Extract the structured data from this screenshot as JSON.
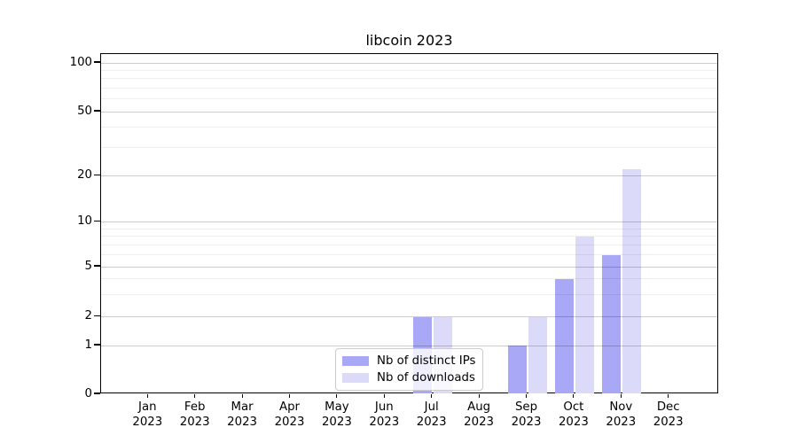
{
  "chart_data": {
    "type": "bar",
    "title": "libcoin 2023",
    "x_year": "2023",
    "categories": [
      "Jan",
      "Feb",
      "Mar",
      "Apr",
      "May",
      "Jun",
      "Jul",
      "Aug",
      "Sep",
      "Oct",
      "Nov",
      "Dec"
    ],
    "series": [
      {
        "name": "Nb of distinct IPs",
        "color": "#a8a8f6",
        "values": [
          0,
          0,
          0,
          0,
          0,
          0,
          2,
          0,
          1,
          4,
          6,
          0
        ]
      },
      {
        "name": "Nb of downloads",
        "color": "#dbdbf9",
        "values": [
          0,
          0,
          0,
          0,
          0,
          0,
          2,
          0,
          2,
          8,
          22,
          0
        ]
      }
    ],
    "yscale": "symlog-like",
    "yticks": [
      0,
      1,
      2,
      5,
      10,
      20,
      50,
      100
    ],
    "yticks_minor": [
      3,
      4,
      6,
      7,
      8,
      9,
      30,
      40,
      60,
      70,
      80,
      90
    ],
    "ylim": [
      0,
      113
    ],
    "grid": true,
    "legend": {
      "labels": [
        "Nb of distinct IPs",
        "Nb of downloads"
      ],
      "position": "lower center"
    }
  }
}
